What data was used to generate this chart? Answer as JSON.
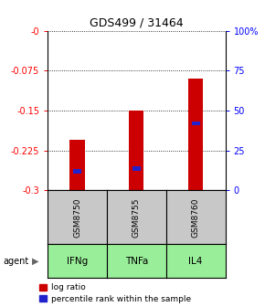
{
  "title": "GDS499 / 31464",
  "categories": [
    "IFNg",
    "TNFa",
    "IL4"
  ],
  "sample_ids": [
    "GSM8750",
    "GSM8755",
    "GSM8760"
  ],
  "log_ratios": [
    -0.205,
    -0.15,
    -0.09
  ],
  "percentile_ranks": [
    12.0,
    13.5,
    42.0
  ],
  "bar_color": "#cc0000",
  "pct_color": "#2222cc",
  "ylim": [
    -0.3,
    0.0
  ],
  "yticks_left": [
    -0.3,
    -0.225,
    -0.15,
    -0.075,
    0.0
  ],
  "ytick_labels_left": [
    "-0.3",
    "-0.225",
    "-0.15",
    "-0.075",
    "-0"
  ],
  "yticks_right": [
    0,
    25,
    50,
    75,
    100
  ],
  "ytick_labels_right": [
    "0",
    "25",
    "50",
    "75",
    "100%"
  ],
  "cell_bg_color": "#c8c8c8",
  "agent_bg_color": "#99ee99",
  "bar_width": 0.25,
  "bg_color": "#ffffff",
  "title_fontsize": 9,
  "tick_fontsize": 7,
  "table_label_fontsize": 7.5,
  "agent_fontsize": 7,
  "legend_fontsize": 6.5
}
